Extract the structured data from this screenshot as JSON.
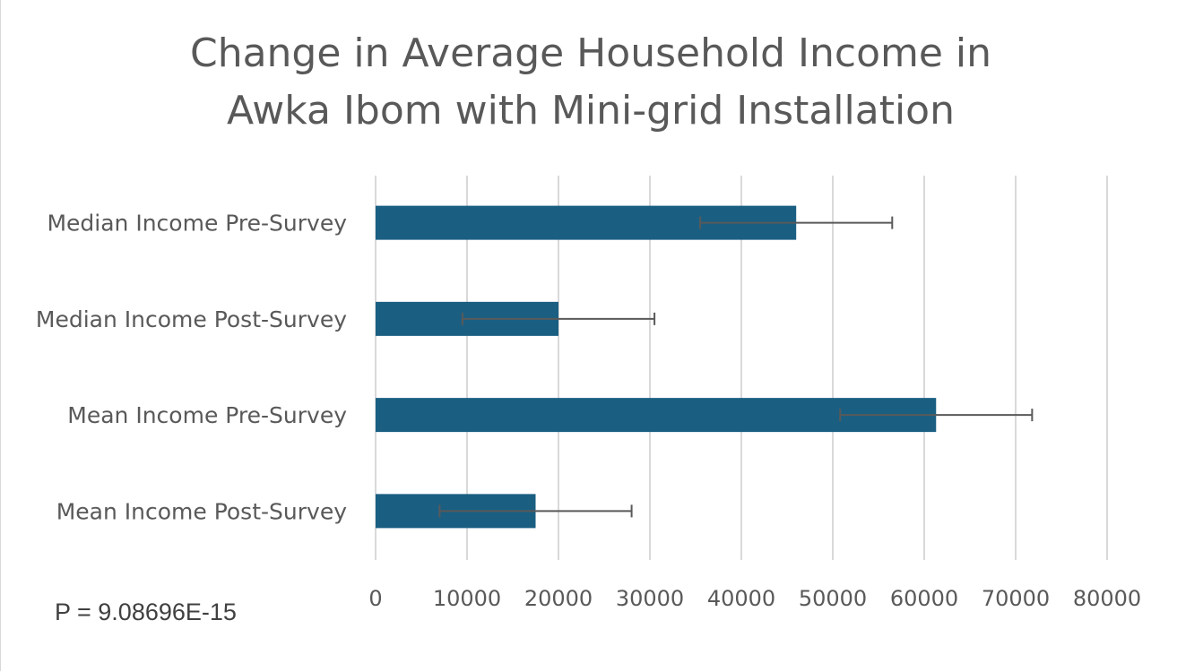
{
  "chart_data": {
    "type": "bar",
    "orientation": "horizontal",
    "title": "Change in Average Household Income in Awka Ibom with Mini-grid Installation",
    "categories": [
      "Median Income Pre-Survey",
      "Median Income Post-Survey",
      "Mean Income Pre-Survey",
      "Mean Income Post-Survey"
    ],
    "values": [
      46000,
      20000,
      61300,
      17500
    ],
    "error_bars": [
      10500,
      10500,
      10500,
      10500
    ],
    "xlim": [
      0,
      80000
    ],
    "xticks": [
      "0",
      "10000",
      "20000",
      "30000",
      "40000",
      "50000",
      "60000",
      "70000",
      "80000"
    ],
    "grid": "vertical",
    "legend": "none",
    "bar_color": "#1a5f82",
    "error_bar_color": "#595959",
    "annotation": "P = 9.08696E-15"
  }
}
